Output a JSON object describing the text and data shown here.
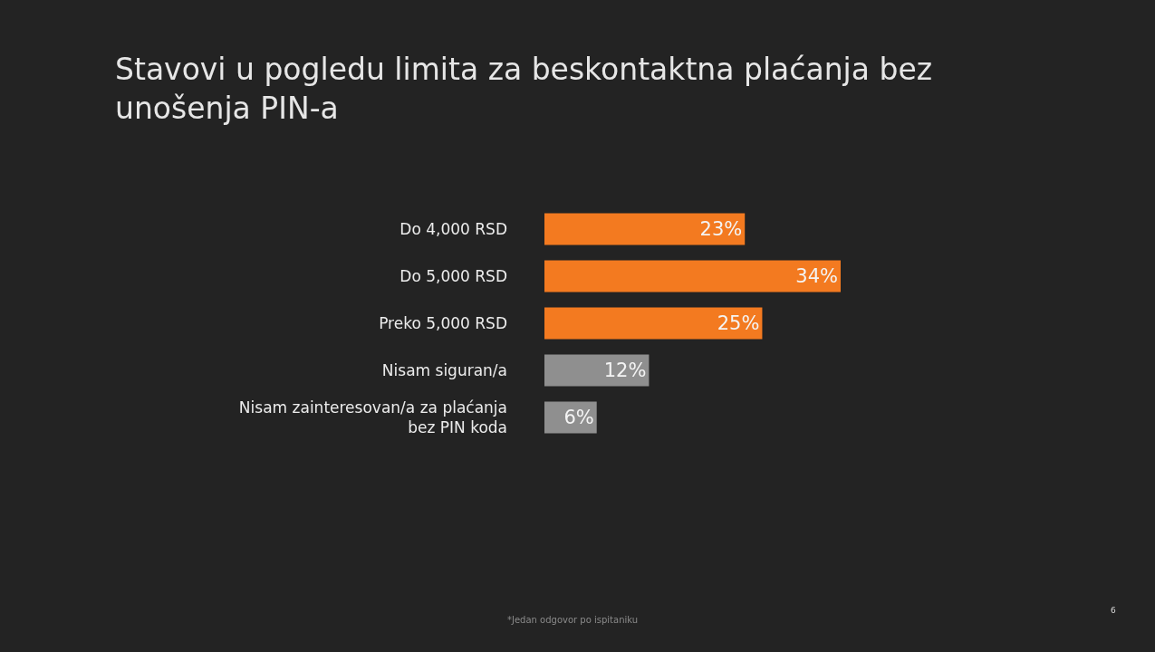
{
  "chart_data": {
    "type": "bar",
    "orientation": "horizontal",
    "title": "Stavovi u pogledu limita za beskontaktna plaćanja bez unošenja PIN-a",
    "categories": [
      "Do 4,000 RSD",
      "Do 5,000 RSD",
      "Preko 5,000 RSD",
      "Nisam siguran/a",
      "Nisam zainteresovan/a za plaćanja bez PIN koda"
    ],
    "values": [
      23,
      34,
      25,
      12,
      6
    ],
    "colors": [
      "#f37a20",
      "#f37a20",
      "#f37a20",
      "#8f8f8f",
      "#8f8f8f"
    ],
    "value_labels": [
      "23%",
      "34%",
      "25%",
      "12%",
      "6%"
    ],
    "annotations": [
      "*Jedan odgovor po ispitaniku",
      "6"
    ]
  }
}
